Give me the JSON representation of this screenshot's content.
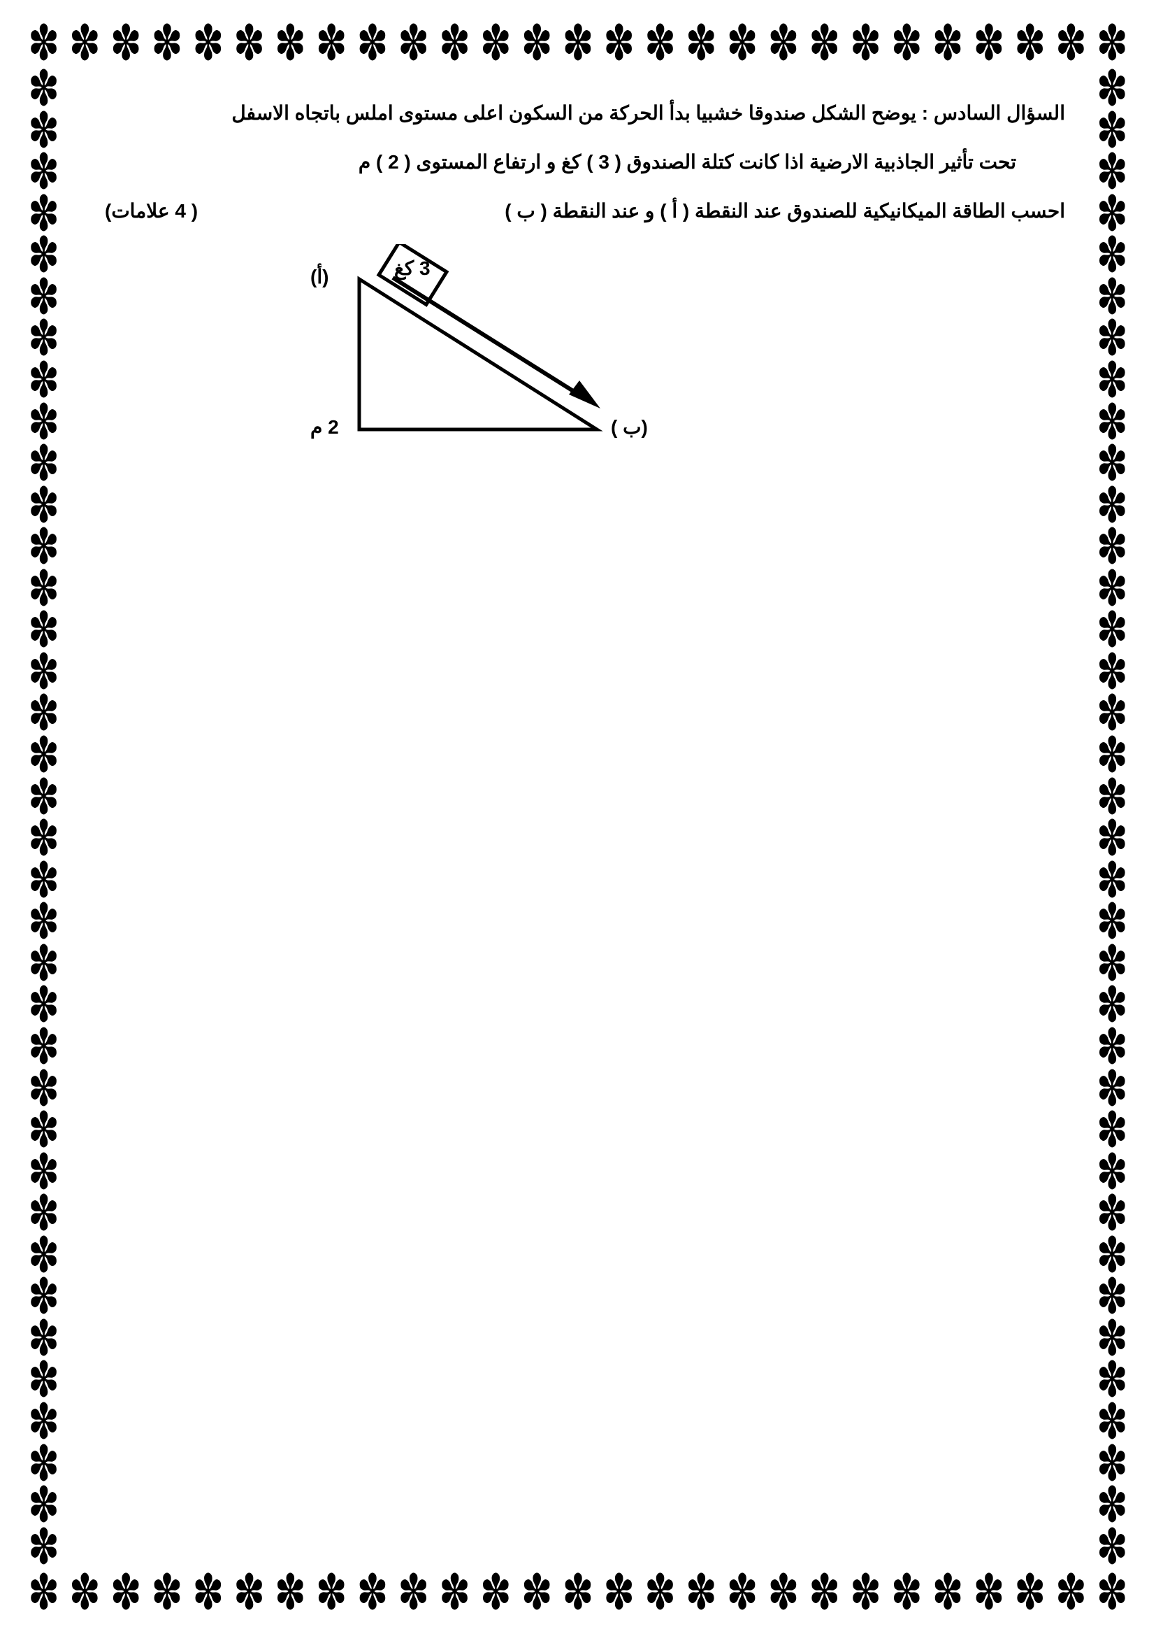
{
  "question": {
    "line1": "السؤال السادس : يوضح الشكل صندوقا خشبيا بدأ الحركة من السكون  اعلى مستوى املس باتجاه الاسفل",
    "line2": "تحت تأثير الجاذبية الارضية اذا كانت كتلة الصندوق ( 3  ) كغ و ارتفاع المستوى ( 2 ) م",
    "line3_main": "احسب الطاقة الميكانيكية للصندوق عند النقطة ( أ ) و عند النقطة  ( ب )",
    "line3_marks": "( 4 علامات)"
  },
  "diagram": {
    "label_a": "(أ)",
    "label_b": "(ب )",
    "mass_label": "3 كغ",
    "height_label": "2 م",
    "stroke_color": "#000000",
    "stroke_width": 5,
    "fill_color": "#ffffff"
  }
}
